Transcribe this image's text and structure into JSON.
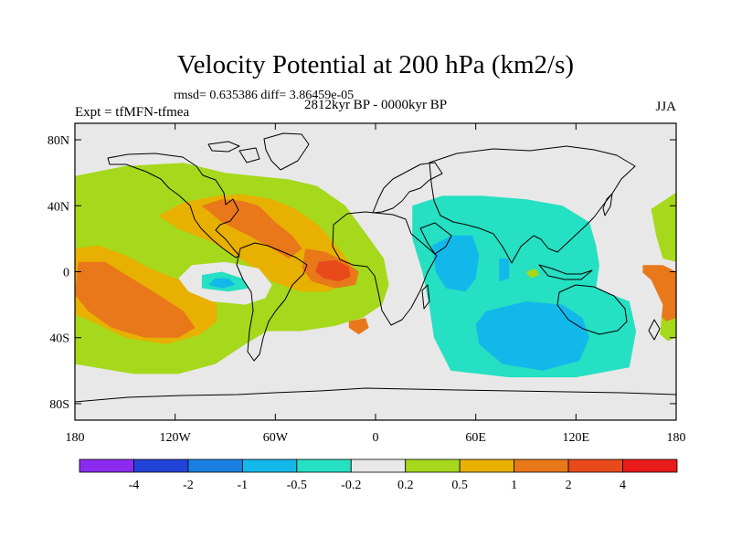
{
  "chart_data": {
    "type": "heatmap",
    "title": "Velocity Potential at 200 hPa (km2/s)",
    "stats_text": "rmsd= 0.635386 diff= 3.86459e-05",
    "left_label": "Expt = tfMFN-tfmea",
    "center_label": "2812kyr BP - 0000kyr BP",
    "right_label": "JJA",
    "x_ticks": [
      {
        "value": -180,
        "label": "180"
      },
      {
        "value": -120,
        "label": "120W"
      },
      {
        "value": -60,
        "label": "60W"
      },
      {
        "value": 0,
        "label": "0"
      },
      {
        "value": 60,
        "label": "60E"
      },
      {
        "value": 120,
        "label": "120E"
      },
      {
        "value": 180,
        "label": "180"
      }
    ],
    "y_ticks": [
      {
        "value": 80,
        "label": "80N"
      },
      {
        "value": 40,
        "label": "40N"
      },
      {
        "value": 0,
        "label": "0"
      },
      {
        "value": -40,
        "label": "40S"
      },
      {
        "value": -80,
        "label": "80S"
      }
    ],
    "xlim": [
      -180,
      180
    ],
    "ylim": [
      -90,
      90
    ],
    "colorbar": {
      "colors": [
        "#8c2bf0",
        "#2244d8",
        "#1a7fe0",
        "#13b8ea",
        "#25e0c2",
        "#e8e8e8",
        "#a6d81c",
        "#e8b000",
        "#e8781a",
        "#e84a1a",
        "#e81a1a"
      ],
      "tick_labels": [
        "-4",
        "-2",
        "-1",
        "-0.5",
        "-0.2",
        "0.2",
        "0.5",
        "1",
        "2",
        "4"
      ]
    },
    "regions": [
      {
        "level": 0.2,
        "pts": [
          [
            -180,
            58
          ],
          [
            -150,
            64
          ],
          [
            -115,
            66
          ],
          [
            -90,
            60
          ],
          [
            -72,
            58
          ],
          [
            -52,
            56
          ],
          [
            -35,
            52
          ],
          [
            -18,
            40
          ],
          [
            -5,
            22
          ],
          [
            5,
            8
          ],
          [
            8,
            -8
          ],
          [
            4,
            -20
          ],
          [
            -8,
            -28
          ],
          [
            -25,
            -33
          ],
          [
            -45,
            -36
          ],
          [
            -65,
            -36
          ],
          [
            -78,
            -44
          ],
          [
            -96,
            -56
          ],
          [
            -118,
            -62
          ],
          [
            -145,
            -62
          ],
          [
            -180,
            -56
          ]
        ]
      },
      {
        "level": 0.2,
        "pts": [
          [
            165,
            38
          ],
          [
            180,
            48
          ],
          [
            180,
            6
          ],
          [
            172,
            8
          ],
          [
            168,
            22
          ]
        ]
      },
      {
        "level": 0.2,
        "pts": [
          [
            148,
            -4
          ],
          [
            158,
            0
          ],
          [
            172,
            -1
          ],
          [
            180,
            -2
          ],
          [
            180,
            -40
          ],
          [
            175,
            -42
          ],
          [
            168,
            -36
          ],
          [
            162,
            -26
          ]
        ]
      },
      {
        "level": 0.5,
        "pts": [
          [
            -180,
            14
          ],
          [
            -166,
            16
          ],
          [
            -150,
            10
          ],
          [
            -135,
            2
          ],
          [
            -120,
            -4
          ],
          [
            -102,
            -12
          ],
          [
            -95,
            -20
          ],
          [
            -95,
            -30
          ],
          [
            -105,
            -38
          ],
          [
            -125,
            -44
          ],
          [
            -150,
            -40
          ],
          [
            -170,
            -30
          ],
          [
            -180,
            -26
          ]
        ]
      },
      {
        "level": 0.5,
        "pts": [
          [
            -130,
            34
          ],
          [
            -115,
            42
          ],
          [
            -95,
            46
          ],
          [
            -80,
            47
          ],
          [
            -62,
            44
          ],
          [
            -48,
            38
          ],
          [
            -34,
            28
          ],
          [
            -22,
            14
          ],
          [
            -14,
            4
          ],
          [
            -18,
            -6
          ],
          [
            -28,
            -12
          ],
          [
            -45,
            -12
          ],
          [
            -62,
            -6
          ],
          [
            -78,
            6
          ],
          [
            -98,
            18
          ],
          [
            -118,
            26
          ]
        ]
      },
      {
        "level": 1,
        "pts": [
          [
            -178,
            6
          ],
          [
            -162,
            6
          ],
          [
            -146,
            -4
          ],
          [
            -130,
            -14
          ],
          [
            -115,
            -24
          ],
          [
            -108,
            -34
          ],
          [
            -118,
            -40
          ],
          [
            -138,
            -40
          ],
          [
            -158,
            -34
          ],
          [
            -172,
            -24
          ],
          [
            -180,
            -14
          ]
        ]
      },
      {
        "level": 1,
        "pts": [
          [
            -104,
            40
          ],
          [
            -92,
            44
          ],
          [
            -80,
            43
          ],
          [
            -70,
            40
          ],
          [
            -60,
            30
          ],
          [
            -50,
            22
          ],
          [
            -44,
            14
          ],
          [
            -52,
            8
          ],
          [
            -62,
            14
          ],
          [
            -76,
            22
          ],
          [
            -92,
            30
          ]
        ]
      },
      {
        "level": 1,
        "pts": [
          [
            -42,
            14
          ],
          [
            -30,
            12
          ],
          [
            -18,
            6
          ],
          [
            -10,
            0
          ],
          [
            -12,
            -8
          ],
          [
            -24,
            -10
          ],
          [
            -38,
            -6
          ],
          [
            -44,
            2
          ]
        ]
      },
      {
        "level": 1,
        "pts": [
          [
            -16,
            -30
          ],
          [
            -6,
            -28
          ],
          [
            -4,
            -34
          ],
          [
            -10,
            -38
          ],
          [
            -16,
            -34
          ]
        ]
      },
      {
        "level": 2,
        "pts": [
          [
            -34,
            6
          ],
          [
            -24,
            7
          ],
          [
            -16,
            3
          ],
          [
            -15,
            -3
          ],
          [
            -22,
            -6
          ],
          [
            -31,
            -4
          ],
          [
            -36,
            0
          ]
        ]
      },
      {
        "level": 1,
        "pts": [
          [
            160,
            4
          ],
          [
            172,
            4
          ],
          [
            180,
            0
          ],
          [
            180,
            -28
          ],
          [
            174,
            -30
          ],
          [
            166,
            -22
          ],
          [
            160,
            -10
          ]
        ]
      },
      {
        "level": -0.2,
        "pts": [
          [
            -110,
            4
          ],
          [
            -90,
            6
          ],
          [
            -70,
            2
          ],
          [
            -62,
            -8
          ],
          [
            -66,
            -16
          ],
          [
            -78,
            -20
          ],
          [
            -98,
            -18
          ],
          [
            -112,
            -12
          ],
          [
            -118,
            -4
          ]
        ]
      },
      {
        "level": -0.5,
        "pts": [
          [
            -104,
            -2
          ],
          [
            -92,
            0
          ],
          [
            -80,
            -4
          ],
          [
            -76,
            -10
          ],
          [
            -88,
            -12
          ],
          [
            -104,
            -10
          ]
        ]
      },
      {
        "level": -1,
        "pts": [
          [
            -96,
            -4
          ],
          [
            -88,
            -4
          ],
          [
            -84,
            -8
          ],
          [
            -92,
            -10
          ],
          [
            -100,
            -8
          ]
        ]
      },
      {
        "level": -0.2,
        "pts": [
          [
            15,
            58
          ],
          [
            30,
            62
          ],
          [
            50,
            66
          ],
          [
            80,
            67
          ],
          [
            100,
            66
          ],
          [
            125,
            66
          ],
          [
            138,
            60
          ],
          [
            140,
            48
          ],
          [
            142,
            36
          ],
          [
            140,
            22
          ],
          [
            148,
            10
          ],
          [
            165,
            -5
          ],
          [
            172,
            -20
          ],
          [
            170,
            -40
          ],
          [
            172,
            -55
          ],
          [
            178,
            -68
          ],
          [
            175,
            -76
          ],
          [
            135,
            -80
          ],
          [
            80,
            -82
          ],
          [
            40,
            -82
          ],
          [
            15,
            -80
          ],
          [
            12,
            -60
          ],
          [
            16,
            -40
          ],
          [
            15,
            -15
          ],
          [
            12,
            10
          ],
          [
            10,
            30
          ],
          [
            12,
            45
          ]
        ]
      },
      {
        "level": -0.5,
        "pts": [
          [
            22,
            40
          ],
          [
            40,
            46
          ],
          [
            64,
            46
          ],
          [
            90,
            44
          ],
          [
            112,
            40
          ],
          [
            128,
            30
          ],
          [
            132,
            16
          ],
          [
            134,
            4
          ],
          [
            132,
            -10
          ],
          [
            152,
            -18
          ],
          [
            156,
            -36
          ],
          [
            152,
            -58
          ],
          [
            120,
            -64
          ],
          [
            80,
            -64
          ],
          [
            45,
            -60
          ],
          [
            35,
            -40
          ],
          [
            32,
            -20
          ],
          [
            28,
            0
          ],
          [
            22,
            20
          ]
        ]
      },
      {
        "level": -1,
        "pts": [
          [
            34,
            16
          ],
          [
            46,
            22
          ],
          [
            58,
            22
          ],
          [
            62,
            10
          ],
          [
            60,
            -4
          ],
          [
            54,
            -12
          ],
          [
            42,
            -10
          ],
          [
            36,
            0
          ]
        ]
      },
      {
        "level": -1,
        "pts": [
          [
            74,
            8
          ],
          [
            80,
            8
          ],
          [
            80,
            -4
          ],
          [
            74,
            -6
          ]
        ]
      },
      {
        "level": -1,
        "pts": [
          [
            66,
            -24
          ],
          [
            90,
            -18
          ],
          [
            112,
            -20
          ],
          [
            124,
            -28
          ],
          [
            128,
            -40
          ],
          [
            122,
            -54
          ],
          [
            100,
            -60
          ],
          [
            76,
            -56
          ],
          [
            62,
            -44
          ],
          [
            60,
            -32
          ]
        ]
      },
      {
        "level": 0.2,
        "pts": [
          [
            90,
            0
          ],
          [
            96,
            2
          ],
          [
            98,
            -2
          ],
          [
            93,
            -4
          ]
        ]
      }
    ]
  }
}
